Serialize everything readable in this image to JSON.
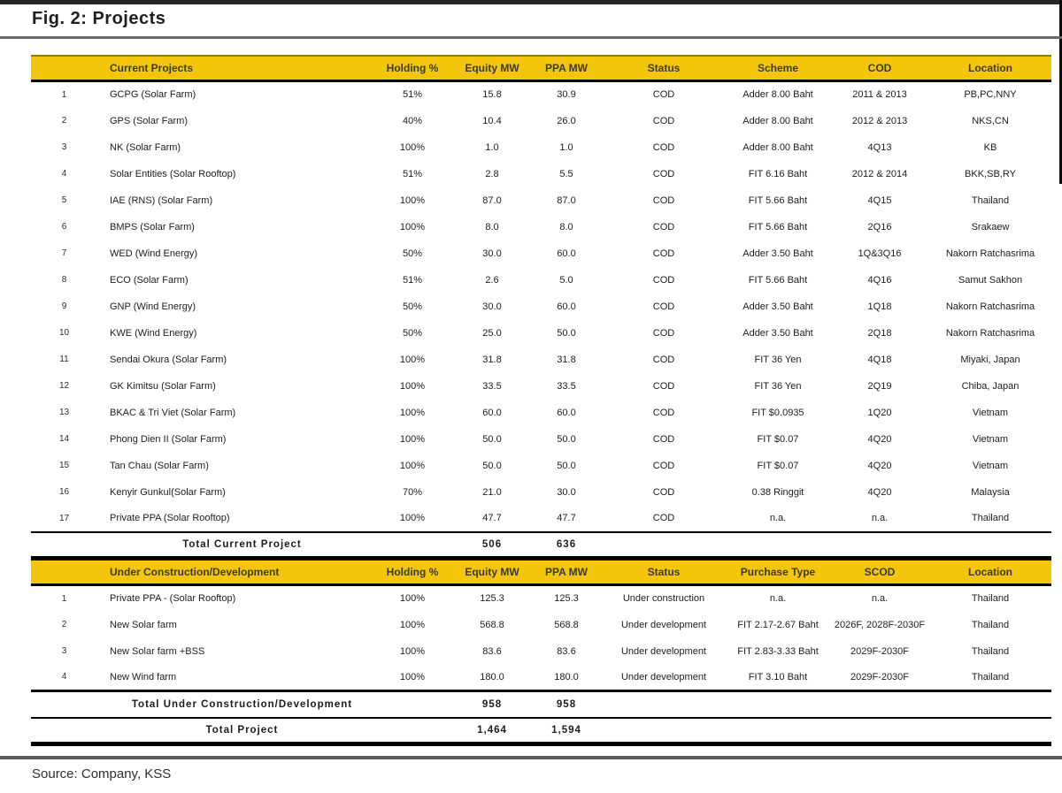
{
  "figure": {
    "title": "Fig. 2: Projects",
    "source": "Source: Company, KSS"
  },
  "colors": {
    "header_yellow": "#F3C60C",
    "rule_dark": "#262626",
    "rule_gray": "#6a6a6a"
  },
  "table": {
    "current": {
      "headers": [
        "",
        "Current Projects",
        "Holding %",
        "Equity MW",
        "PPA MW",
        "Status",
        "Scheme",
        "COD",
        "Location"
      ],
      "rows": [
        [
          "1",
          "GCPG (Solar Farm)",
          "51%",
          "15.8",
          "30.9",
          "COD",
          "Adder 8.00 Baht",
          "2011 & 2013",
          "PB,PC,NNY"
        ],
        [
          "2",
          "GPS (Solar Farm)",
          "40%",
          "10.4",
          "26.0",
          "COD",
          "Adder 8.00 Baht",
          "2012 & 2013",
          "NKS,CN"
        ],
        [
          "3",
          "NK (Solar Farm)",
          "100%",
          "1.0",
          "1.0",
          "COD",
          "Adder 8.00 Baht",
          "4Q13",
          "KB"
        ],
        [
          "4",
          "Solar Entities (Solar Rooftop)",
          "51%",
          "2.8",
          "5.5",
          "COD",
          "FIT 6.16 Baht",
          "2012 & 2014",
          "BKK,SB,RY"
        ],
        [
          "5",
          "IAE (RNS) (Solar Farm)",
          "100%",
          "87.0",
          "87.0",
          "COD",
          "FIT 5.66 Baht",
          "4Q15",
          "Thailand"
        ],
        [
          "6",
          "BMPS (Solar Farm)",
          "100%",
          "8.0",
          "8.0",
          "COD",
          "FIT 5.66 Baht",
          "2Q16",
          "Srakaew"
        ],
        [
          "7",
          "WED (Wind Energy)",
          "50%",
          "30.0",
          "60.0",
          "COD",
          "Adder 3.50 Baht",
          "1Q&3Q16",
          "Nakorn Ratchasrima"
        ],
        [
          "8",
          "ECO (Solar Farm)",
          "51%",
          "2.6",
          "5.0",
          "COD",
          "FIT 5.66 Baht",
          "4Q16",
          "Samut Sakhon"
        ],
        [
          "9",
          "GNP (Wind Energy)",
          "50%",
          "30.0",
          "60.0",
          "COD",
          "Adder 3.50 Baht",
          "1Q18",
          "Nakorn Ratchasrima"
        ],
        [
          "10",
          "KWE (Wind Energy)",
          "50%",
          "25.0",
          "50.0",
          "COD",
          "Adder 3.50 Baht",
          "2Q18",
          "Nakorn Ratchasrima"
        ],
        [
          "11",
          "Sendai Okura (Solar Farm)",
          "100%",
          "31.8",
          "31.8",
          "COD",
          "FIT 36 Yen",
          "4Q18",
          "Miyaki, Japan"
        ],
        [
          "12",
          "GK Kimitsu (Solar Farm)",
          "100%",
          "33.5",
          "33.5",
          "COD",
          "FIT 36 Yen",
          "2Q19",
          "Chiba, Japan"
        ],
        [
          "13",
          "BKAC & Tri Viet (Solar Farm)",
          "100%",
          "60.0",
          "60.0",
          "COD",
          "FIT $0.0935",
          "1Q20",
          "Vietnam"
        ],
        [
          "14",
          "Phong Dien II (Solar Farm)",
          "100%",
          "50.0",
          "50.0",
          "COD",
          "FIT $0.07",
          "4Q20",
          "Vietnam"
        ],
        [
          "15",
          "Tan Chau (Solar Farm)",
          "100%",
          "50.0",
          "50.0",
          "COD",
          "FIT $0.07",
          "4Q20",
          "Vietnam"
        ],
        [
          "16",
          "Kenyir Gunkul(Solar Farm)",
          "70%",
          "21.0",
          "30.0",
          "COD",
          "0.38 Ringgit",
          "4Q20",
          "Malaysia"
        ],
        [
          "17",
          "Private PPA (Solar Rooftop)",
          "100%",
          "47.7",
          "47.7",
          "COD",
          "n.a.",
          "n.a.",
          "Thailand"
        ]
      ],
      "total": {
        "label": "Total Current Project",
        "equity_mw": "506",
        "ppa_mw": "636"
      }
    },
    "under": {
      "headers": [
        "",
        "Under Construction/Development",
        "Holding %",
        "Equity MW",
        "PPA MW",
        "Status",
        "Purchase Type",
        "SCOD",
        "Location"
      ],
      "rows": [
        [
          "1",
          "Private PPA - (Solar Rooftop)",
          "100%",
          "125.3",
          "125.3",
          "Under construction",
          "n.a.",
          "n.a.",
          "Thailand"
        ],
        [
          "2",
          "New Solar farm",
          "100%",
          "568.8",
          "568.8",
          "Under development",
          "FIT 2.17-2.67 Baht",
          "2026F, 2028F-2030F",
          "Thailand"
        ],
        [
          "3",
          "New Solar farm +BSS",
          "100%",
          "83.6",
          "83.6",
          "Under development",
          "FIT 2.83-3.33 Baht",
          "2029F-2030F",
          "Thailand"
        ],
        [
          "4",
          "New Wind farm",
          "100%",
          "180.0",
          "180.0",
          "Under development",
          "FIT 3.10 Baht",
          "2029F-2030F",
          "Thailand"
        ]
      ],
      "total": {
        "label": "Total Under Construction/Development",
        "equity_mw": "958",
        "ppa_mw": "958"
      }
    },
    "grand_total": {
      "label": "Total Project",
      "equity_mw": "1,464",
      "ppa_mw": "1,594"
    }
  }
}
